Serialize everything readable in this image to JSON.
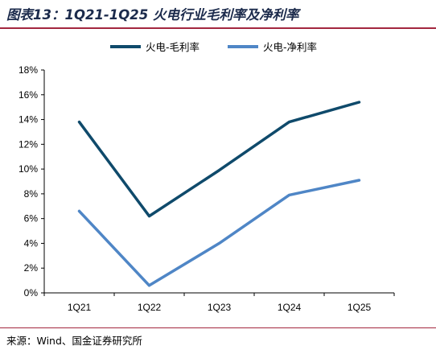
{
  "header": {
    "title": "图表13：1Q21-1Q25 火电行业毛利率及净利率"
  },
  "footer": {
    "source": "来源：Wind、国金证券研究所"
  },
  "chart_data": {
    "type": "line",
    "title": "",
    "xlabel": "",
    "ylabel": "",
    "categories": [
      "1Q21",
      "1Q22",
      "1Q23",
      "1Q24",
      "1Q25"
    ],
    "y_tick_labels": [
      "0%",
      "2%",
      "4%",
      "6%",
      "8%",
      "10%",
      "12%",
      "14%",
      "16%",
      "18%"
    ],
    "ylim": [
      0,
      18
    ],
    "grid": false,
    "legend_position": "top",
    "series": [
      {
        "name": "火电-毛利率",
        "color": "#0f4a6b",
        "values": [
          13.8,
          6.2,
          9.9,
          13.8,
          15.4
        ]
      },
      {
        "name": "火电-净利率",
        "color": "#4f86c6",
        "values": [
          6.6,
          0.6,
          4.0,
          7.9,
          9.1
        ]
      }
    ]
  }
}
